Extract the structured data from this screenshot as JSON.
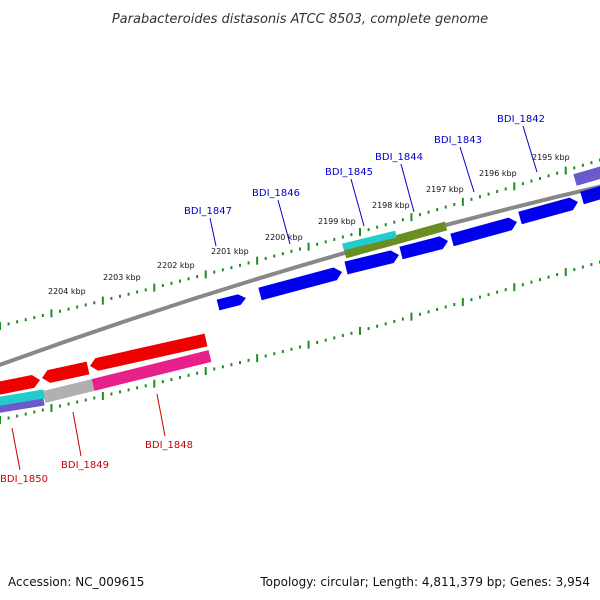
{
  "title": "Parabacteroides distasonis ATCC 8503, complete genome",
  "footer": {
    "accession": "Accession: NC_009615",
    "summary": "Topology: circular; Length: 4,811,379 bp; Genes: 3,954"
  },
  "scale_labels": [
    {
      "text": "2204 kbp",
      "pos": 2204
    },
    {
      "text": "2203 kbp",
      "pos": 2203
    },
    {
      "text": "2202 kbp",
      "pos": 2202
    },
    {
      "text": "2201 kbp",
      "pos": 2201
    },
    {
      "text": "2200 kbp",
      "pos": 2200
    },
    {
      "text": "2199 kbp",
      "pos": 2199
    },
    {
      "text": "2198 kbp",
      "pos": 2198
    },
    {
      "text": "2197 kbp",
      "pos": 2197
    },
    {
      "text": "2196 kbp",
      "pos": 2196
    },
    {
      "text": "2195 kbp",
      "pos": 2195
    }
  ],
  "gene_labels_forward": [
    {
      "text": "BDI_1847",
      "color": "#0000cc"
    },
    {
      "text": "BDI_1846",
      "color": "#0000cc"
    },
    {
      "text": "BDI_1845",
      "color": "#0000cc"
    },
    {
      "text": "BDI_1844",
      "color": "#0000cc"
    },
    {
      "text": "BDI_1843",
      "color": "#0000cc"
    },
    {
      "text": "BDI_1842",
      "color": "#0000cc"
    }
  ],
  "gene_labels_reverse": [
    {
      "text": "BDI_1850",
      "color": "#cc0000"
    },
    {
      "text": "BDI_1849",
      "color": "#cc0000"
    },
    {
      "text": "BDI_1848",
      "color": "#cc0000"
    }
  ],
  "colors": {
    "backbone": "#888888",
    "scale_ticks": "#228b22",
    "forward_cds": "#0000ee",
    "reverse_cds": "#ee0000",
    "pink_feature": "#e8208a",
    "grey_feature": "#b0b0b0",
    "cyan_feature": "#22cccc",
    "olive_feature": "#6b8e23",
    "purple_feature": "#6a5acd"
  }
}
